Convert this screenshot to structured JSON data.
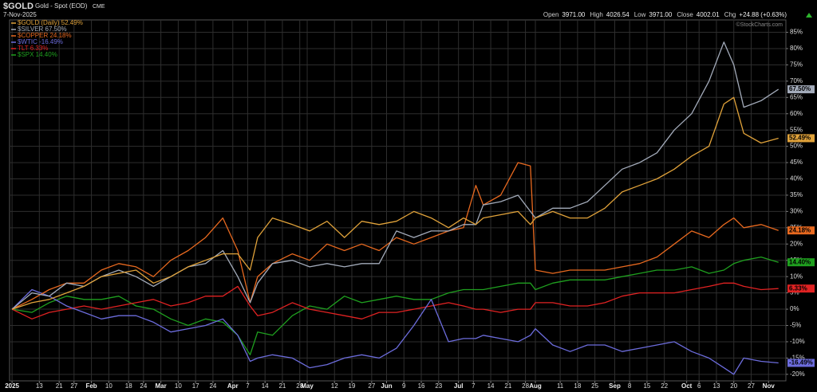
{
  "header": {
    "symbol": "$GOLD",
    "description": "Gold - Spot (EOD)",
    "exchange": "CME",
    "date": "7-Nov-2025",
    "quote": [
      {
        "label": "Open",
        "value": "3971.00"
      },
      {
        "label": "High",
        "value": "4026.54"
      },
      {
        "label": "Low",
        "value": "3971.00"
      },
      {
        "label": "Close",
        "value": "4002.01"
      },
      {
        "label": "Chg",
        "value": "+24.88 (+0.63%)"
      }
    ],
    "watermark": "©StockCharts.com"
  },
  "chart_data": {
    "type": "line",
    "x": [
      "2025-01-02",
      "2025-01-10",
      "2025-01-17",
      "2025-01-24",
      "2025-01-31",
      "2025-02-07",
      "2025-02-14",
      "2025-02-21",
      "2025-02-28",
      "2025-03-07",
      "2025-03-14",
      "2025-03-21",
      "2025-03-28",
      "2025-04-03",
      "2025-04-08",
      "2025-04-11",
      "2025-04-17",
      "2025-04-25",
      "2025-05-02",
      "2025-05-09",
      "2025-05-16",
      "2025-05-23",
      "2025-05-30",
      "2025-06-06",
      "2025-06-13",
      "2025-06-20",
      "2025-06-27",
      "2025-07-03",
      "2025-07-08",
      "2025-07-11",
      "2025-07-18",
      "2025-07-25",
      "2025-07-30",
      "2025-08-01",
      "2025-08-08",
      "2025-08-15",
      "2025-08-22",
      "2025-08-29",
      "2025-09-05",
      "2025-09-12",
      "2025-09-19",
      "2025-09-26",
      "2025-10-03",
      "2025-10-10",
      "2025-10-16",
      "2025-10-20",
      "2025-10-24",
      "2025-10-31",
      "2025-11-07"
    ],
    "xlim": [
      "2025-01-01",
      "2025-11-10"
    ],
    "xticks": [
      {
        "value": "2025-01-02",
        "label": "2025"
      },
      {
        "value": "2025-01-13",
        "label": "13"
      },
      {
        "value": "2025-01-21",
        "label": "21"
      },
      {
        "value": "2025-01-27",
        "label": "27"
      },
      {
        "value": "2025-02-03",
        "label": "Feb"
      },
      {
        "value": "2025-02-10",
        "label": "10"
      },
      {
        "value": "2025-02-18",
        "label": "18"
      },
      {
        "value": "2025-02-24",
        "label": "24"
      },
      {
        "value": "2025-03-03",
        "label": "Mar"
      },
      {
        "value": "2025-03-10",
        "label": "10"
      },
      {
        "value": "2025-03-17",
        "label": "17"
      },
      {
        "value": "2025-03-24",
        "label": "24"
      },
      {
        "value": "2025-04-01",
        "label": "Apr"
      },
      {
        "value": "2025-04-07",
        "label": "7"
      },
      {
        "value": "2025-04-14",
        "label": "14"
      },
      {
        "value": "2025-04-21",
        "label": "21"
      },
      {
        "value": "2025-04-28",
        "label": "28"
      },
      {
        "value": "2025-05-01",
        "label": "May"
      },
      {
        "value": "2025-05-12",
        "label": "12"
      },
      {
        "value": "2025-05-19",
        "label": "19"
      },
      {
        "value": "2025-05-27",
        "label": "27"
      },
      {
        "value": "2025-06-02",
        "label": "Jun"
      },
      {
        "value": "2025-06-09",
        "label": "9"
      },
      {
        "value": "2025-06-16",
        "label": "16"
      },
      {
        "value": "2025-06-23",
        "label": "23"
      },
      {
        "value": "2025-07-01",
        "label": "Jul"
      },
      {
        "value": "2025-07-07",
        "label": "7"
      },
      {
        "value": "2025-07-14",
        "label": "14"
      },
      {
        "value": "2025-07-21",
        "label": "21"
      },
      {
        "value": "2025-07-28",
        "label": "28"
      },
      {
        "value": "2025-08-01",
        "label": "Aug"
      },
      {
        "value": "2025-08-11",
        "label": "11"
      },
      {
        "value": "2025-08-18",
        "label": "18"
      },
      {
        "value": "2025-08-25",
        "label": "25"
      },
      {
        "value": "2025-09-02",
        "label": "Sep"
      },
      {
        "value": "2025-09-08",
        "label": "8"
      },
      {
        "value": "2025-09-15",
        "label": "15"
      },
      {
        "value": "2025-09-22",
        "label": "22"
      },
      {
        "value": "2025-10-01",
        "label": "Oct"
      },
      {
        "value": "2025-10-06",
        "label": "6"
      },
      {
        "value": "2025-10-13",
        "label": "13"
      },
      {
        "value": "2025-10-20",
        "label": "20"
      },
      {
        "value": "2025-10-27",
        "label": "27"
      },
      {
        "value": "2025-11-03",
        "label": "Nov"
      }
    ],
    "ylim": [
      -22,
      88.8
    ],
    "yticks": [
      {
        "value": -20,
        "label": "-20%"
      },
      {
        "value": -15,
        "label": "-15%"
      },
      {
        "value": -10,
        "label": "-10%"
      },
      {
        "value": -5,
        "label": "-5%"
      },
      {
        "value": 0,
        "label": "0%"
      },
      {
        "value": 5,
        "label": "5%"
      },
      {
        "value": 10,
        "label": "10%"
      },
      {
        "value": 15,
        "label": "15%"
      },
      {
        "value": 20,
        "label": "20%"
      },
      {
        "value": 25,
        "label": "25%"
      },
      {
        "value": 30,
        "label": "30%"
      },
      {
        "value": 35,
        "label": "35%"
      },
      {
        "value": 40,
        "label": "40%"
      },
      {
        "value": 45,
        "label": "45%"
      },
      {
        "value": 50,
        "label": "50%"
      },
      {
        "value": 55,
        "label": "55%"
      },
      {
        "value": 60,
        "label": "60%"
      },
      {
        "value": 65,
        "label": "65%"
      },
      {
        "value": 70,
        "label": "70%"
      },
      {
        "value": 75,
        "label": "75%"
      },
      {
        "value": 80,
        "label": "80%"
      },
      {
        "value": 85,
        "label": "85%"
      }
    ],
    "grid": true,
    "legend": "top-left",
    "series": [
      {
        "name": "$GOLD (Daily) 52.49%",
        "color": "#e0a23a",
        "values": [
          0,
          2,
          3,
          5,
          7,
          10,
          11,
          12,
          8,
          10,
          13,
          15,
          17,
          17,
          12,
          22,
          28,
          26,
          24,
          27,
          22,
          27,
          26,
          27,
          30,
          28,
          25,
          28,
          26,
          28,
          29,
          30,
          26,
          28,
          30,
          28,
          28,
          31,
          36,
          38,
          40,
          43,
          47,
          50,
          63,
          65,
          54,
          51,
          52.49
        ],
        "value_labels": [
          null,
          null,
          null,
          null,
          null,
          null,
          null,
          null,
          null,
          null,
          null,
          null,
          null,
          null,
          null,
          null,
          null,
          null,
          null,
          null,
          null,
          null,
          null,
          null,
          null,
          null,
          null,
          null,
          null,
          null,
          null,
          null,
          null,
          null,
          null,
          null,
          null,
          null,
          null,
          null,
          null,
          null,
          null,
          null,
          null,
          null,
          null,
          null,
          "52.49%"
        ]
      },
      {
        "name": "$SILVER 67.50%",
        "color": "#a3abba",
        "values": [
          0,
          5,
          4,
          8,
          7,
          10,
          12,
          10,
          7,
          10,
          13,
          14,
          18,
          10,
          2,
          8,
          14,
          15,
          13,
          14,
          13,
          14,
          14,
          24,
          22,
          24,
          24,
          26,
          26,
          32,
          33,
          35,
          30,
          28,
          31,
          31,
          33,
          38,
          43,
          45,
          48,
          55,
          60,
          70,
          82,
          75,
          62,
          64,
          67.5
        ],
        "value_labels": [
          null,
          null,
          null,
          null,
          null,
          null,
          null,
          null,
          null,
          null,
          null,
          null,
          null,
          null,
          null,
          null,
          null,
          null,
          null,
          null,
          null,
          null,
          null,
          null,
          null,
          null,
          null,
          null,
          null,
          null,
          null,
          null,
          null,
          null,
          null,
          null,
          null,
          null,
          null,
          null,
          null,
          null,
          null,
          null,
          null,
          null,
          null,
          null,
          "67.50%"
        ]
      },
      {
        "name": "$COPPER 24.18%",
        "color": "#e8691f",
        "values": [
          0,
          3,
          6,
          8,
          8,
          12,
          14,
          13,
          10,
          15,
          18,
          22,
          28,
          18,
          2,
          10,
          14,
          17,
          15,
          20,
          18,
          20,
          18,
          22,
          20,
          22,
          24,
          25,
          38,
          32,
          35,
          45,
          44,
          12,
          11,
          12,
          12,
          12,
          13,
          14,
          16,
          20,
          24,
          22,
          26,
          28,
          25,
          26,
          24.18
        ],
        "value_labels": [
          null,
          null,
          null,
          null,
          null,
          null,
          null,
          null,
          null,
          null,
          null,
          null,
          null,
          null,
          null,
          null,
          null,
          null,
          null,
          null,
          null,
          null,
          null,
          null,
          null,
          null,
          null,
          null,
          null,
          null,
          null,
          null,
          null,
          null,
          null,
          null,
          null,
          null,
          null,
          null,
          null,
          null,
          null,
          null,
          null,
          null,
          null,
          null,
          "24.18%"
        ]
      },
      {
        "name": "$WTIC -16.49%",
        "color": "#6c6cdc",
        "values": [
          0,
          6,
          4,
          1,
          -1,
          -3,
          -2,
          -2,
          -4,
          -7,
          -6,
          -5,
          -3,
          -8,
          -16,
          -15,
          -14,
          -15,
          -18,
          -17,
          -15,
          -14,
          -15,
          -12,
          -5,
          3,
          -10,
          -9,
          -9,
          -8,
          -9,
          -10,
          -8,
          -6,
          -11,
          -13,
          -11,
          -11,
          -13,
          -12,
          -11,
          -10,
          -13,
          -15,
          -18,
          -20,
          -15,
          -16,
          -16.49
        ],
        "value_labels": [
          null,
          null,
          null,
          null,
          null,
          null,
          null,
          null,
          null,
          null,
          null,
          null,
          null,
          null,
          null,
          null,
          null,
          null,
          null,
          null,
          null,
          null,
          null,
          null,
          null,
          null,
          null,
          null,
          null,
          null,
          null,
          null,
          null,
          null,
          null,
          null,
          null,
          null,
          null,
          null,
          null,
          null,
          null,
          null,
          null,
          null,
          null,
          null,
          "-16.49%"
        ]
      },
      {
        "name": "TLT 6.33%",
        "color": "#e02222",
        "values": [
          0,
          -3,
          -1,
          0,
          1,
          0,
          1,
          2,
          3,
          1,
          2,
          4,
          4,
          7,
          1,
          -2,
          -1,
          2,
          0,
          -1,
          -2,
          -3,
          -1,
          -1,
          0,
          1,
          2,
          1,
          0,
          0,
          -1,
          0,
          0,
          2,
          2,
          1,
          1,
          2,
          4,
          5,
          5,
          5,
          6,
          7,
          8,
          8,
          7,
          6,
          6.33
        ],
        "value_labels": [
          null,
          null,
          null,
          null,
          null,
          null,
          null,
          null,
          null,
          null,
          null,
          null,
          null,
          null,
          null,
          null,
          null,
          null,
          null,
          null,
          null,
          null,
          null,
          null,
          null,
          null,
          null,
          null,
          null,
          null,
          null,
          null,
          null,
          null,
          null,
          null,
          null,
          null,
          null,
          null,
          null,
          null,
          null,
          null,
          null,
          null,
          null,
          null,
          "6.33%"
        ]
      },
      {
        "name": "$SPX 14.40%",
        "color": "#1fa01f",
        "values": [
          0,
          -1,
          2,
          4,
          3,
          3,
          4,
          1,
          0,
          -3,
          -5,
          -3,
          -4,
          -8,
          -14,
          -7,
          -8,
          -2,
          1,
          0,
          4,
          2,
          3,
          4,
          3,
          3,
          5,
          6,
          6,
          6,
          7,
          8,
          8,
          6,
          8,
          9,
          9,
          9,
          10,
          11,
          12,
          12,
          13,
          11,
          12,
          14,
          15,
          16,
          14.4
        ],
        "value_labels": [
          null,
          null,
          null,
          null,
          null,
          null,
          null,
          null,
          null,
          null,
          null,
          null,
          null,
          null,
          null,
          null,
          null,
          null,
          null,
          null,
          null,
          null,
          null,
          null,
          null,
          null,
          null,
          null,
          null,
          null,
          null,
          null,
          null,
          null,
          null,
          null,
          null,
          null,
          null,
          null,
          null,
          null,
          null,
          null,
          null,
          null,
          null,
          null,
          "14.40%"
        ]
      }
    ]
  }
}
